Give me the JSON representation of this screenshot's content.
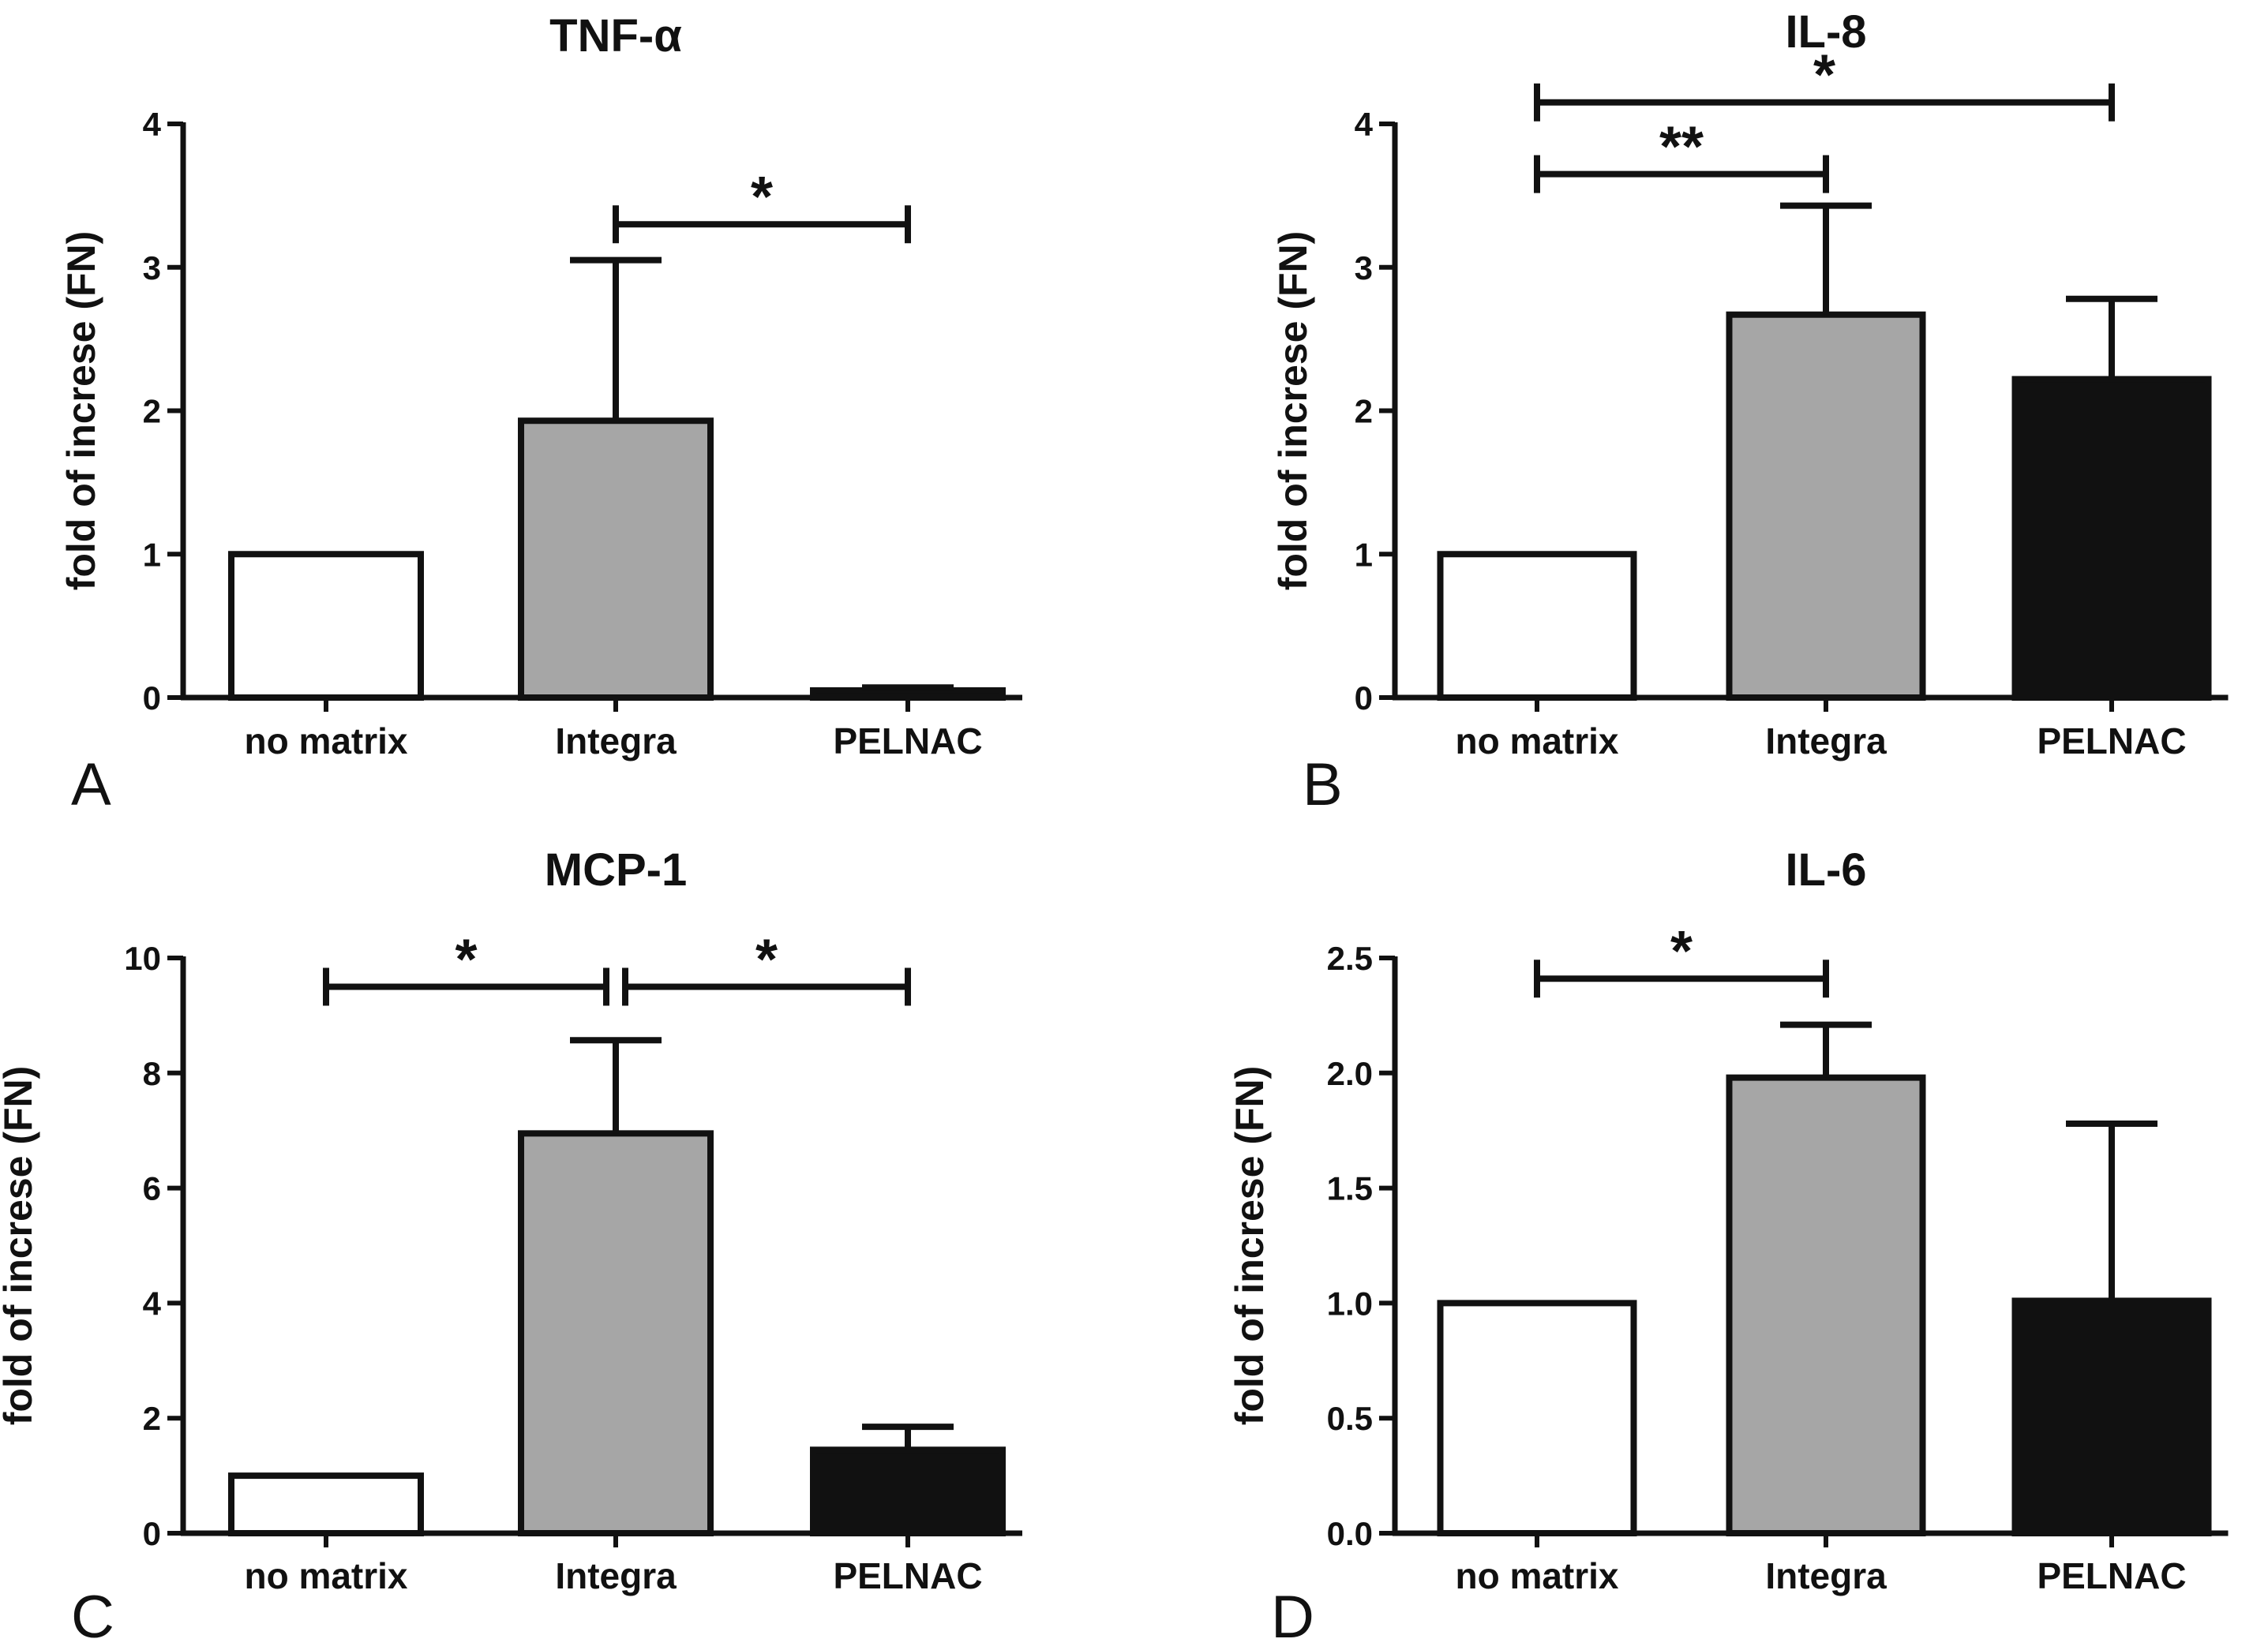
{
  "colors": {
    "no_matrix": "#ffffff",
    "integra": "#a6a6a6",
    "pelnac": "#111111",
    "stroke": "#111111"
  },
  "chart_data": [
    {
      "type": "bar",
      "panel_letter": "A",
      "title": "TNF-α",
      "xlabel": "",
      "ylabel": "fold of increse (FN)",
      "categories": [
        "no matrix",
        "Integra",
        "PELNAC"
      ],
      "values": [
        1.0,
        1.93,
        0.05
      ],
      "errors": [
        0,
        1.12,
        0.02
      ],
      "ylim": [
        0,
        4
      ],
      "yticks": [
        0,
        1,
        2,
        3,
        4
      ],
      "ytick_labels": [
        "0",
        "1",
        "2",
        "3",
        "4"
      ],
      "significance": [
        {
          "from": "Integra",
          "to": "PELNAC",
          "label": "*",
          "y": 3.3
        }
      ]
    },
    {
      "type": "bar",
      "panel_letter": "B",
      "title": "IL-8",
      "xlabel": "",
      "ylabel": "fold of increse (FN)",
      "categories": [
        "no matrix",
        "Integra",
        "PELNAC"
      ],
      "values": [
        1.0,
        2.67,
        2.22
      ],
      "errors": [
        0,
        0.76,
        0.56
      ],
      "ylim": [
        0,
        4
      ],
      "yticks": [
        0,
        1,
        2,
        3,
        4
      ],
      "ytick_labels": [
        "0",
        "1",
        "2",
        "3",
        "4"
      ],
      "significance": [
        {
          "from": "no matrix",
          "to": "Integra",
          "label": "**",
          "y": 3.65
        },
        {
          "from": "no matrix",
          "to": "PELNAC",
          "label": "*",
          "y": 4.15
        }
      ]
    },
    {
      "type": "bar",
      "panel_letter": "C",
      "title": "MCP-1",
      "xlabel": "",
      "ylabel": "fold of increse (FN)",
      "categories": [
        "no matrix",
        "Integra",
        "PELNAC"
      ],
      "values": [
        1.0,
        6.95,
        1.45
      ],
      "errors": [
        0,
        1.62,
        0.4
      ],
      "ylim": [
        0,
        10
      ],
      "yticks": [
        0,
        2,
        4,
        6,
        8,
        10
      ],
      "ytick_labels": [
        "0",
        "2",
        "4",
        "6",
        "8",
        "10"
      ],
      "significance": [
        {
          "from": "no matrix",
          "to": "Integra",
          "label": "*",
          "y": 9.5
        },
        {
          "from": "Integra",
          "to": "PELNAC",
          "label": "*",
          "y": 9.5
        }
      ]
    },
    {
      "type": "bar",
      "panel_letter": "D",
      "title": "IL-6",
      "xlabel": "",
      "ylabel": "fold of increse (FN)",
      "categories": [
        "no matrix",
        "Integra",
        "PELNAC"
      ],
      "values": [
        1.0,
        1.98,
        1.01
      ],
      "errors": [
        0,
        0.23,
        0.77
      ],
      "ylim": [
        0,
        2.5
      ],
      "yticks": [
        0,
        0.5,
        1.0,
        1.5,
        2.0,
        2.5
      ],
      "ytick_labels": [
        "0.0",
        "0.5",
        "1.0",
        "1.5",
        "2.0",
        "2.5"
      ],
      "significance": [
        {
          "from": "no matrix",
          "to": "Integra",
          "label": "*",
          "y": 2.41
        }
      ]
    }
  ]
}
